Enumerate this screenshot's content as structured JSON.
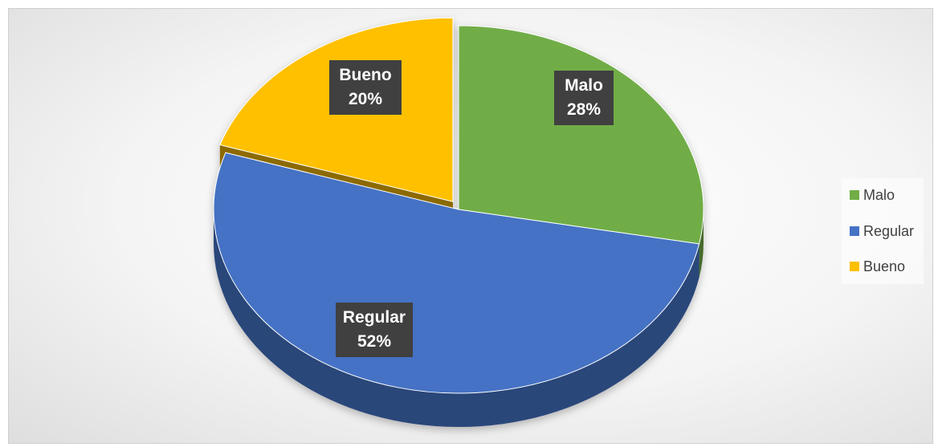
{
  "chart_data": {
    "type": "pie",
    "categories": [
      "Malo",
      "Regular",
      "Bueno"
    ],
    "values": [
      28,
      52,
      20
    ],
    "data_labels": [
      {
        "name": "Malo",
        "pct": "28%"
      },
      {
        "name": "Regular",
        "pct": "52%"
      },
      {
        "name": "Bueno",
        "pct": "20%"
      }
    ],
    "colors": [
      "#70AD47",
      "#4472C4",
      "#FFC000"
    ],
    "exploded": "Bueno",
    "three_d": true,
    "legend": {
      "position": "right",
      "items": [
        {
          "label": "Malo",
          "color": "#70AD47"
        },
        {
          "label": "Regular",
          "color": "#4472C4"
        },
        {
          "label": "Bueno",
          "color": "#FFC000"
        }
      ]
    }
  }
}
